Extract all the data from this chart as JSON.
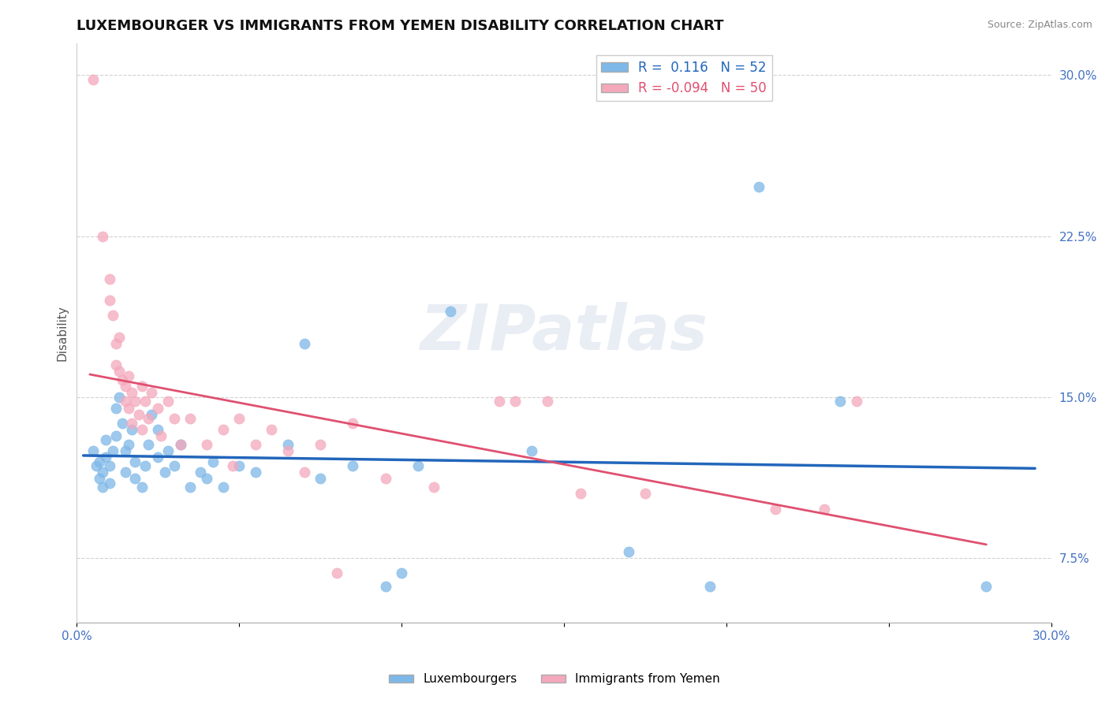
{
  "title": "LUXEMBOURGER VS IMMIGRANTS FROM YEMEN DISABILITY CORRELATION CHART",
  "source": "Source: ZipAtlas.com",
  "xlabel": "",
  "ylabel": "Disability",
  "xlim": [
    0.0,
    0.3
  ],
  "ylim": [
    0.045,
    0.315
  ],
  "yticks": [
    0.075,
    0.15,
    0.225,
    0.3
  ],
  "yticklabels": [
    "7.5%",
    "15.0%",
    "22.5%",
    "30.0%"
  ],
  "blue_color": "#7EB8E8",
  "pink_color": "#F4A8BC",
  "blue_line_color": "#2266BB",
  "pink_line_color": "#E05070",
  "blue_R": 0.116,
  "blue_N": 52,
  "pink_R": -0.094,
  "pink_N": 50,
  "title_fontsize": 13,
  "label_fontsize": 11,
  "tick_fontsize": 11,
  "watermark": "ZIPatlas",
  "blue_scatter": [
    [
      0.005,
      0.125
    ],
    [
      0.006,
      0.118
    ],
    [
      0.007,
      0.12
    ],
    [
      0.007,
      0.112
    ],
    [
      0.008,
      0.115
    ],
    [
      0.008,
      0.108
    ],
    [
      0.009,
      0.122
    ],
    [
      0.009,
      0.13
    ],
    [
      0.01,
      0.118
    ],
    [
      0.01,
      0.11
    ],
    [
      0.011,
      0.125
    ],
    [
      0.012,
      0.132
    ],
    [
      0.012,
      0.145
    ],
    [
      0.013,
      0.15
    ],
    [
      0.014,
      0.138
    ],
    [
      0.015,
      0.125
    ],
    [
      0.015,
      0.115
    ],
    [
      0.016,
      0.128
    ],
    [
      0.017,
      0.135
    ],
    [
      0.018,
      0.12
    ],
    [
      0.018,
      0.112
    ],
    [
      0.02,
      0.108
    ],
    [
      0.021,
      0.118
    ],
    [
      0.022,
      0.128
    ],
    [
      0.023,
      0.142
    ],
    [
      0.025,
      0.135
    ],
    [
      0.025,
      0.122
    ],
    [
      0.027,
      0.115
    ],
    [
      0.028,
      0.125
    ],
    [
      0.03,
      0.118
    ],
    [
      0.032,
      0.128
    ],
    [
      0.035,
      0.108
    ],
    [
      0.038,
      0.115
    ],
    [
      0.04,
      0.112
    ],
    [
      0.042,
      0.12
    ],
    [
      0.045,
      0.108
    ],
    [
      0.05,
      0.118
    ],
    [
      0.055,
      0.115
    ],
    [
      0.065,
      0.128
    ],
    [
      0.07,
      0.175
    ],
    [
      0.075,
      0.112
    ],
    [
      0.085,
      0.118
    ],
    [
      0.095,
      0.062
    ],
    [
      0.1,
      0.068
    ],
    [
      0.105,
      0.118
    ],
    [
      0.115,
      0.19
    ],
    [
      0.14,
      0.125
    ],
    [
      0.17,
      0.078
    ],
    [
      0.195,
      0.062
    ],
    [
      0.21,
      0.248
    ],
    [
      0.235,
      0.148
    ],
    [
      0.28,
      0.062
    ]
  ],
  "pink_scatter": [
    [
      0.005,
      0.298
    ],
    [
      0.008,
      0.225
    ],
    [
      0.01,
      0.205
    ],
    [
      0.01,
      0.195
    ],
    [
      0.011,
      0.188
    ],
    [
      0.012,
      0.175
    ],
    [
      0.012,
      0.165
    ],
    [
      0.013,
      0.178
    ],
    [
      0.013,
      0.162
    ],
    [
      0.014,
      0.158
    ],
    [
      0.015,
      0.155
    ],
    [
      0.015,
      0.148
    ],
    [
      0.016,
      0.16
    ],
    [
      0.016,
      0.145
    ],
    [
      0.017,
      0.152
    ],
    [
      0.017,
      0.138
    ],
    [
      0.018,
      0.148
    ],
    [
      0.019,
      0.142
    ],
    [
      0.02,
      0.155
    ],
    [
      0.02,
      0.135
    ],
    [
      0.021,
      0.148
    ],
    [
      0.022,
      0.14
    ],
    [
      0.023,
      0.152
    ],
    [
      0.025,
      0.145
    ],
    [
      0.026,
      0.132
    ],
    [
      0.028,
      0.148
    ],
    [
      0.03,
      0.14
    ],
    [
      0.032,
      0.128
    ],
    [
      0.035,
      0.14
    ],
    [
      0.04,
      0.128
    ],
    [
      0.045,
      0.135
    ],
    [
      0.048,
      0.118
    ],
    [
      0.05,
      0.14
    ],
    [
      0.055,
      0.128
    ],
    [
      0.06,
      0.135
    ],
    [
      0.065,
      0.125
    ],
    [
      0.07,
      0.115
    ],
    [
      0.075,
      0.128
    ],
    [
      0.08,
      0.068
    ],
    [
      0.085,
      0.138
    ],
    [
      0.095,
      0.112
    ],
    [
      0.11,
      0.108
    ],
    [
      0.13,
      0.148
    ],
    [
      0.135,
      0.148
    ],
    [
      0.145,
      0.148
    ],
    [
      0.155,
      0.105
    ],
    [
      0.175,
      0.105
    ],
    [
      0.215,
      0.098
    ],
    [
      0.23,
      0.098
    ],
    [
      0.24,
      0.148
    ]
  ]
}
